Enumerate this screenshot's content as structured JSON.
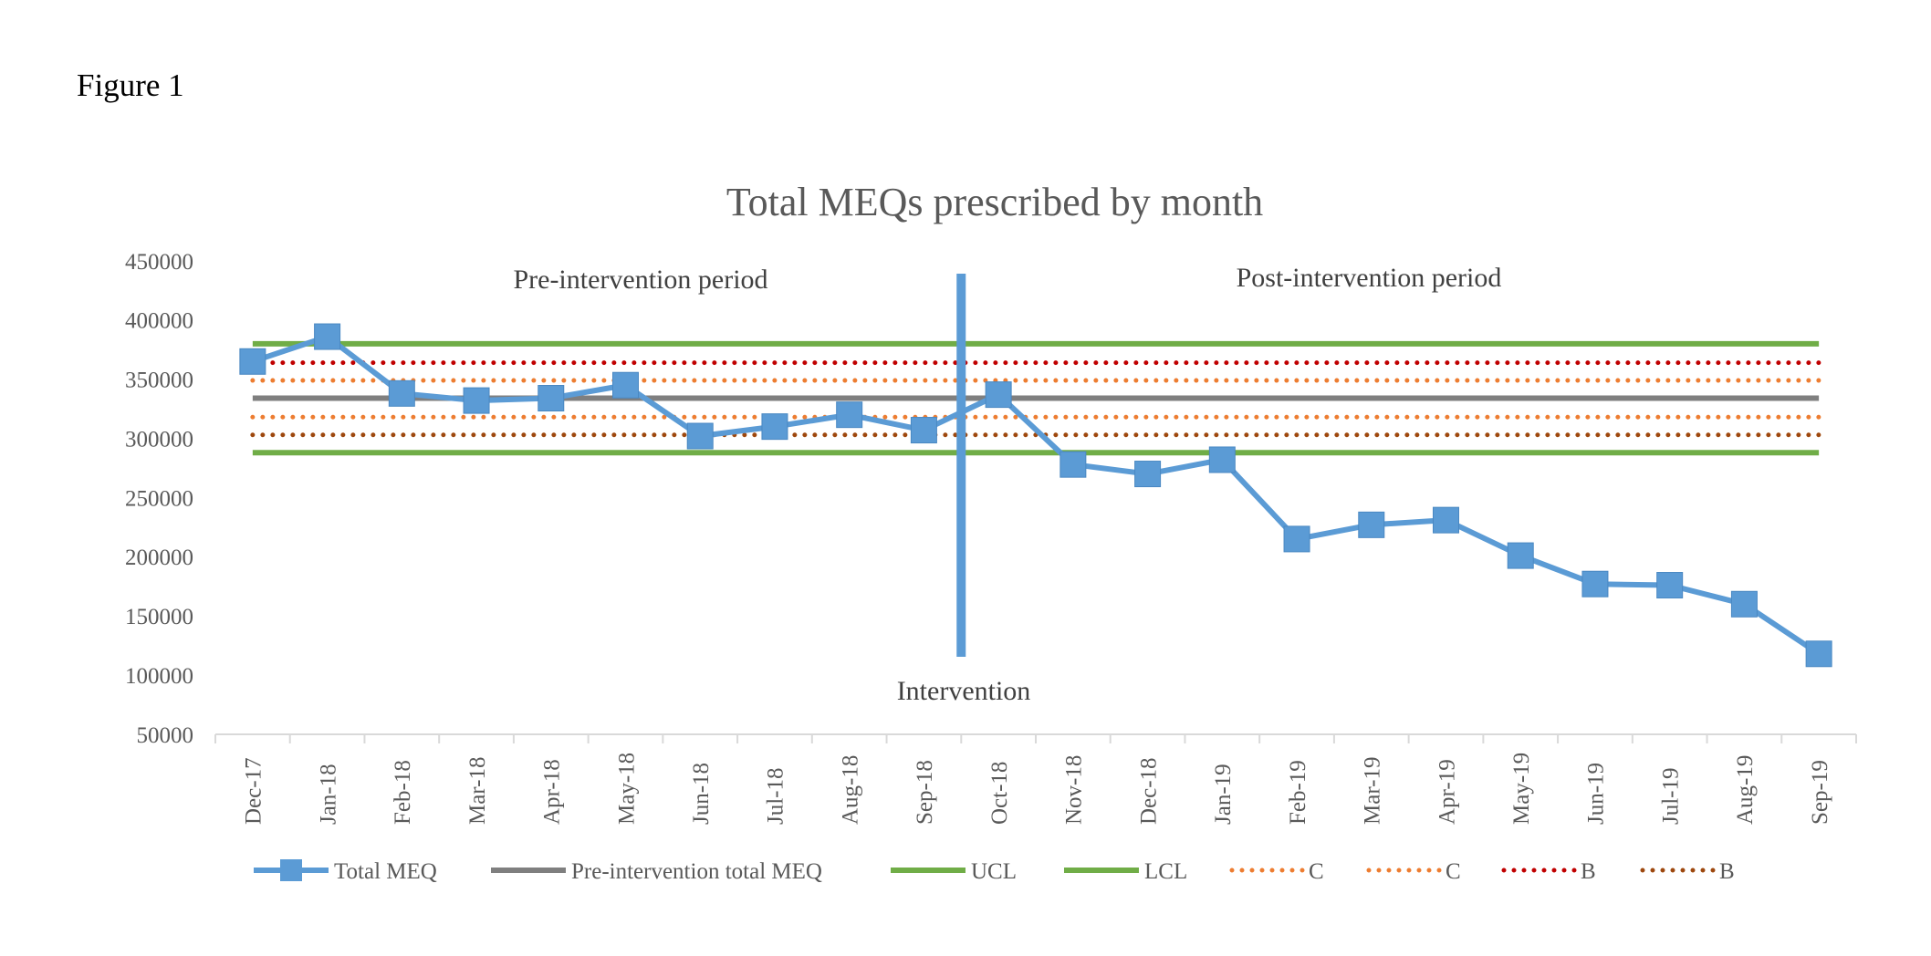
{
  "figure_label": "Figure 1",
  "chart_data": {
    "type": "line",
    "title": "Total MEQs prescribed by month",
    "xlabel": "",
    "ylabel": "",
    "ylim": [
      50000,
      450000
    ],
    "y_ticks": [
      "450000",
      "400000",
      "350000",
      "300000",
      "250000",
      "200000",
      "150000",
      "100000",
      "50000"
    ],
    "categories": [
      "Dec-17",
      "Jan-18",
      "Feb-18",
      "Mar-18",
      "Apr-18",
      "May-18",
      "Jun-18",
      "Jul-18",
      "Aug-18",
      "Sep-18",
      "Oct-18",
      "Nov-18",
      "Dec-18",
      "Jan-19",
      "Feb-19",
      "Mar-19",
      "Apr-19",
      "May-19",
      "Jun-19",
      "Jul-19",
      "Aug-19",
      "Sep-19"
    ],
    "series": [
      {
        "name": "Total MEQ",
        "style": "line-marker",
        "color": "#5b9bd5",
        "values": [
          365000,
          386000,
          338000,
          332000,
          334000,
          345000,
          302000,
          310000,
          320000,
          307000,
          337000,
          278000,
          270000,
          282000,
          215000,
          227000,
          231000,
          201000,
          177000,
          176000,
          160000,
          118000
        ]
      },
      {
        "name": "Pre-intervention total MEQ",
        "style": "solid",
        "color": "#7f7f7f",
        "value": 334000
      },
      {
        "name": "UCL",
        "style": "solid",
        "color": "#70ad47",
        "value": 380000
      },
      {
        "name": "LCL",
        "style": "solid",
        "color": "#70ad47",
        "value": 288000
      },
      {
        "name": "C",
        "style": "dotted",
        "color": "#ed7d31",
        "value": 349000
      },
      {
        "name": "C",
        "style": "dotted",
        "color": "#ed7d31",
        "value": 318000
      },
      {
        "name": "B",
        "style": "dotted",
        "color": "#c00000",
        "value": 364000
      },
      {
        "name": "B",
        "style": "dotted",
        "color": "#9e480e",
        "value": 303000
      }
    ],
    "intervention": {
      "label": "Intervention",
      "category_index": 9.5,
      "color": "#5b9bd5"
    },
    "annotations": {
      "pre": "Pre-intervention period",
      "post": "Post-intervention period"
    },
    "grid": false,
    "legend_position": "bottom"
  }
}
